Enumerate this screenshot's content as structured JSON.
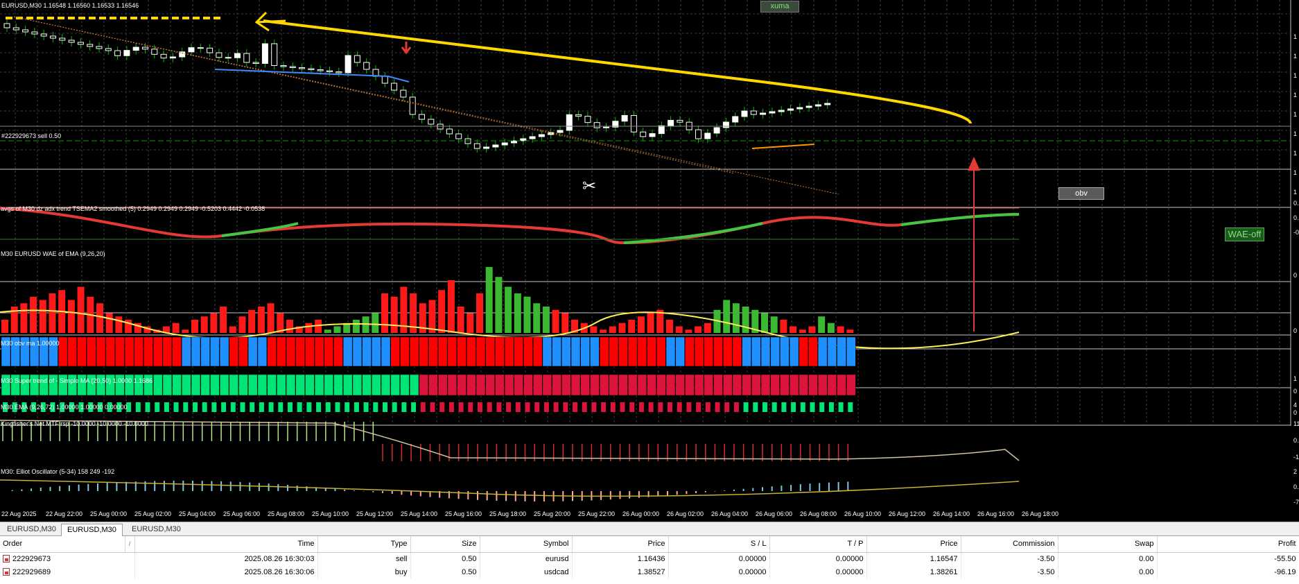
{
  "chart": {
    "symbol_header": "EURUSD,M30  1.16548 1.16560 1.16533 1.16546",
    "order_line_label": "#222929673 sell 0.50",
    "buttons": {
      "xuma": "xuma",
      "obv": "obv",
      "wae_off": "WAE-off"
    },
    "indicators": {
      "avgs": "avgs of M30 dz adx trend TSEMA2 smoothed (5) 0.2949 0.2949 0.2949 -0.5203 0.4442 -0.0538",
      "wae": "M30 EURUSD WAE of EMA (9,26,20)",
      "obv": "M30 obv ma 1.00000",
      "supertrend": "M30  Super trend of - Simple MA (20,50)  1.0000 1.1686",
      "ema": "M30 EMA (9,26,72)  1.00000 1.00000 0.00000",
      "kingfisher": "Kingfisher's Net MTF rsp -10.0000 -10.0000 -10.0000",
      "elliot": "M30: Elliot Oscillator (5-34)  158 249 -192"
    },
    "right_scale": {
      "main": [
        "1",
        "1",
        "1",
        "1",
        "1",
        "1",
        "1",
        "1",
        "1"
      ],
      "avgs": [
        "0.",
        "0.",
        "-0"
      ],
      "wae": [
        "0",
        "0"
      ],
      "supertrend": [
        "1",
        "0"
      ],
      "ema": [
        "4",
        "0"
      ],
      "kingfisher": [
        "11",
        "0.",
        "-1"
      ],
      "elliot": [
        "2",
        "0.",
        "-7"
      ]
    },
    "time_axis": [
      "22 Aug 2025",
      "22 Aug 22:00",
      "25 Aug 00:00",
      "25 Aug 02:00",
      "25 Aug 04:00",
      "25 Aug 06:00",
      "25 Aug 08:00",
      "25 Aug 10:00",
      "25 Aug 12:00",
      "25 Aug 14:00",
      "25 Aug 16:00",
      "25 Aug 18:00",
      "25 Aug 20:00",
      "25 Aug 22:00",
      "26 Aug 00:00",
      "26 Aug 02:00",
      "26 Aug 04:00",
      "26 Aug 06:00",
      "26 Aug 08:00",
      "26 Aug 10:00",
      "26 Aug 12:00",
      "26 Aug 14:00",
      "26 Aug 16:00",
      "26 Aug 18:00"
    ],
    "colors": {
      "bull": "#ffffff",
      "bear": "#ffffff",
      "wick": "#00c000",
      "xuma": "#ffd700",
      "wae_up": "#3cb832",
      "wae_down": "#ff1a1a",
      "obv_up": "#1e90ff",
      "obv_down": "#ff0000",
      "st_up": "#00e676",
      "st_down": "#dc143c"
    }
  },
  "tabs": [
    {
      "label": "EURUSD,M30",
      "active": false
    },
    {
      "label": "EURUSD,M30",
      "active": true
    },
    {
      "label": "EURUSD,M30",
      "active": false
    }
  ],
  "orders": {
    "columns": [
      "Order",
      "/",
      "Time",
      "Type",
      "Size",
      "Symbol",
      "Price",
      "S / L",
      "T / P",
      "Price",
      "Commission",
      "Swap",
      "Profit"
    ],
    "rows": [
      {
        "order": "222929673",
        "time": "2025.08.26 16:30:03",
        "type": "sell",
        "size": "0.50",
        "symbol": "eurusd",
        "price": "1.16436",
        "sl": "0.00000",
        "tp": "0.00000",
        "cur_price": "1.16547",
        "commission": "-3.50",
        "swap": "0.00",
        "profit": "-55.50"
      },
      {
        "order": "222929689",
        "time": "2025.08.26 16:30:06",
        "type": "buy",
        "size": "0.50",
        "symbol": "usdcad",
        "price": "1.38527",
        "sl": "0.00000",
        "tp": "0.00000",
        "cur_price": "1.38261",
        "commission": "-3.50",
        "swap": "0.00",
        "profit": "-96.19"
      }
    ]
  }
}
